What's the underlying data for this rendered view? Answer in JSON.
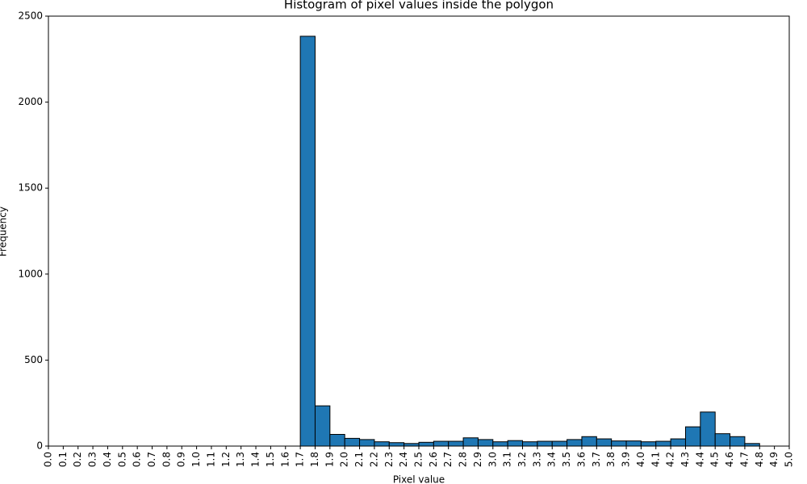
{
  "chart_data": {
    "type": "histogram",
    "title": "Histogram of pixel values inside the polygon",
    "x_label": "Pixel value",
    "y_label": "Frequency",
    "bins": [
      1.7,
      1.8,
      1.9,
      2.0,
      2.1,
      2.2,
      2.3,
      2.4,
      2.5,
      2.6,
      2.7,
      2.8,
      2.9,
      3.0,
      3.1,
      3.2,
      3.3,
      3.4,
      3.5,
      3.6,
      3.7,
      3.8,
      3.9,
      4.0,
      4.1,
      4.2,
      4.3,
      4.4,
      4.5,
      4.6,
      4.7,
      4.8
    ],
    "values": [
      2383,
      234,
      68,
      45,
      38,
      25,
      20,
      15,
      22,
      28,
      28,
      48,
      38,
      25,
      32,
      25,
      28,
      28,
      38,
      55,
      42,
      30,
      30,
      25,
      28,
      42,
      112,
      198,
      72,
      55,
      15
    ],
    "color": "#1f77b4",
    "edge_color": "#000000",
    "xlim": [
      0,
      5
    ],
    "ylim": [
      0,
      2500
    ],
    "xticks": [
      {
        "value": 0,
        "label": "0.0"
      },
      0.1,
      0.2,
      0.3,
      0.4,
      0.5,
      0.6,
      0.7,
      0.8,
      0.9,
      {
        "value": 1,
        "label": "1.0"
      },
      1.1,
      1.2,
      1.3,
      1.4,
      1.5,
      1.6,
      1.7,
      1.8,
      1.9,
      {
        "value": 2,
        "label": "2.0"
      },
      2.1,
      2.2,
      2.3,
      2.4,
      2.5,
      2.6,
      2.7,
      2.8,
      2.9,
      {
        "value": 3,
        "label": "3.0"
      },
      3.1,
      3.2,
      3.3,
      3.4,
      3.5,
      3.6,
      3.7,
      3.8,
      3.9,
      {
        "value": 4,
        "label": "4.0"
      },
      4.1,
      4.2,
      4.3,
      4.4,
      4.5,
      4.6,
      4.7,
      4.8,
      4.9,
      {
        "value": 5,
        "label": "5.0"
      }
    ],
    "yticks": [
      0,
      500,
      1000,
      1500,
      2000,
      2500
    ]
  }
}
